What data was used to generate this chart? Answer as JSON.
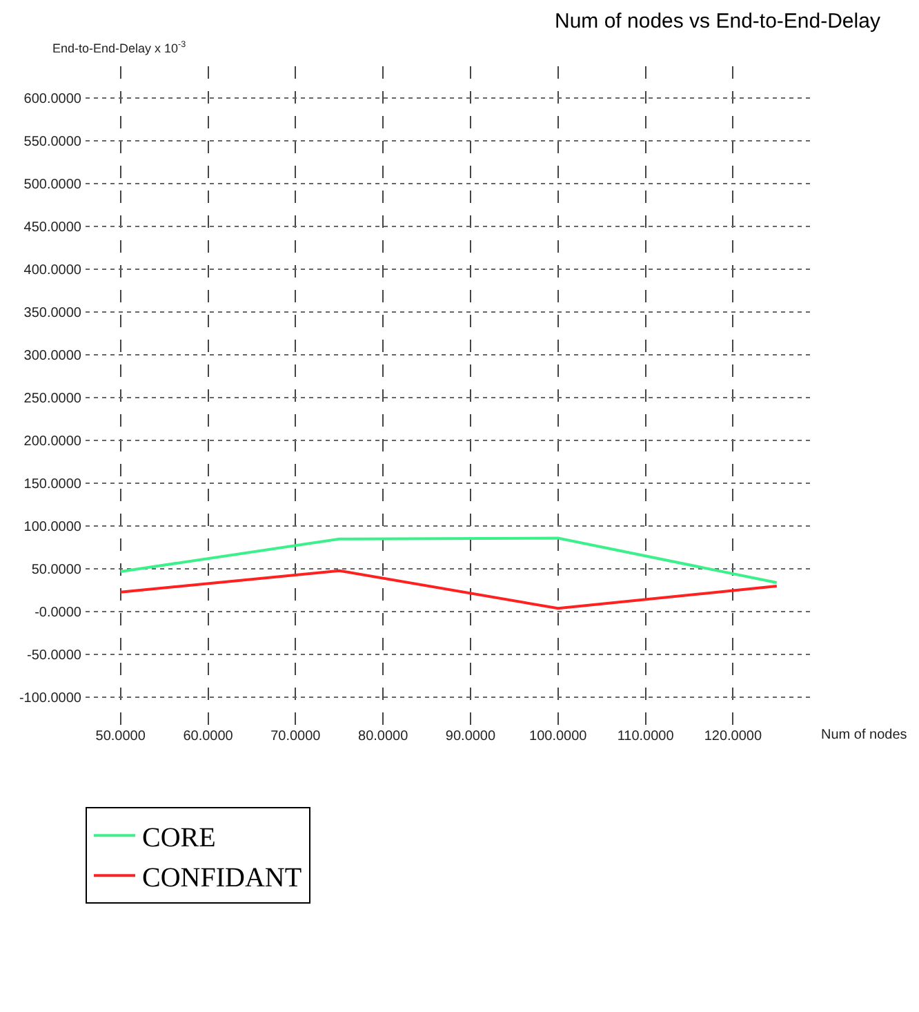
{
  "chart_data": {
    "type": "line",
    "title": "Num of nodes vs End-to-End-Delay",
    "xlabel": "Num of nodes",
    "ylabel": "End-to-End-Delay x 10$^{-3}$",
    "x": [
      50,
      75,
      100,
      125
    ],
    "series": [
      {
        "name": "CORE",
        "color": "#3cf08c",
        "values": [
          47,
          85,
          86,
          34
        ]
      },
      {
        "name": "CONFIDANT",
        "color": "#ff2020",
        "values": [
          23,
          48,
          4,
          30
        ]
      }
    ],
    "xlim": [
      46,
      128.8
    ],
    "ylim": [
      -132,
      637
    ],
    "xticks": [
      {
        "value": 50,
        "label": "50.0000"
      },
      {
        "value": 60,
        "label": "60.0000"
      },
      {
        "value": 70,
        "label": "70.0000"
      },
      {
        "value": 80,
        "label": "80.0000"
      },
      {
        "value": 90,
        "label": "90.0000"
      },
      {
        "value": 100,
        "label": "100.0000"
      },
      {
        "value": 110,
        "label": "110.0000"
      },
      {
        "value": 120,
        "label": "120.0000"
      }
    ],
    "yticks": [
      {
        "value": -100,
        "label": "-100.0000"
      },
      {
        "value": -50,
        "label": "-50.0000"
      },
      {
        "value": 0,
        "label": "-0.0000"
      },
      {
        "value": 50,
        "label": "50.0000"
      },
      {
        "value": 100,
        "label": "100.0000"
      },
      {
        "value": 150,
        "label": "150.0000"
      },
      {
        "value": 200,
        "label": "200.0000"
      },
      {
        "value": 250,
        "label": "250.0000"
      },
      {
        "value": 300,
        "label": "300.0000"
      },
      {
        "value": 350,
        "label": "350.0000"
      },
      {
        "value": 400,
        "label": "400.0000"
      },
      {
        "value": 450,
        "label": "450.0000"
      },
      {
        "value": 500,
        "label": "500.0000"
      },
      {
        "value": 550,
        "label": "550.0000"
      },
      {
        "value": 600,
        "label": "600.0000"
      }
    ],
    "grid": true,
    "legend": "bottom",
    "marker": "none",
    "line_style": "solid"
  }
}
